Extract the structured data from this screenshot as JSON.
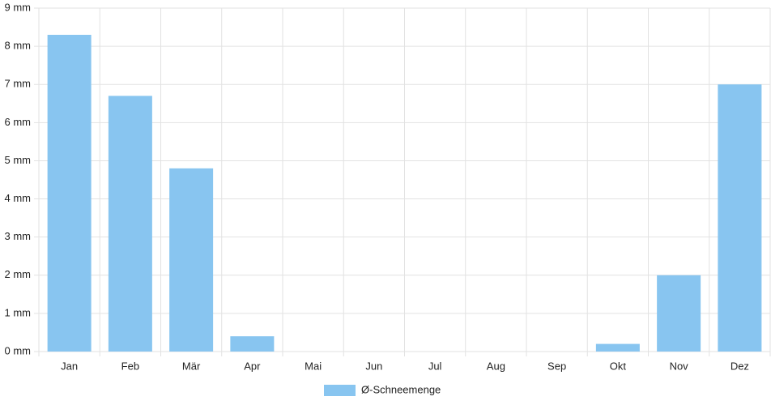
{
  "chart_data": {
    "type": "bar",
    "categories": [
      "Jan",
      "Feb",
      "Mär",
      "Apr",
      "Mai",
      "Jun",
      "Jul",
      "Aug",
      "Sep",
      "Okt",
      "Nov",
      "Dez"
    ],
    "series": [
      {
        "name": "Ø-Schneemenge",
        "color": "#88c5f0",
        "values": [
          8.3,
          6.7,
          4.8,
          0.4,
          0,
          0,
          0,
          0,
          0,
          0.2,
          2.0,
          7.0
        ]
      }
    ],
    "ylim": [
      0,
      9
    ],
    "yticks": [
      {
        "value": 0,
        "label": "0 mm"
      },
      {
        "value": 1,
        "label": "1 mm"
      },
      {
        "value": 2,
        "label": "2 mm"
      },
      {
        "value": 3,
        "label": "3 mm"
      },
      {
        "value": 4,
        "label": "4 mm"
      },
      {
        "value": 5,
        "label": "5 mm"
      },
      {
        "value": 6,
        "label": "6 mm"
      },
      {
        "value": 7,
        "label": "7 mm"
      },
      {
        "value": 8,
        "label": "8 mm"
      },
      {
        "value": 9,
        "label": "9 mm"
      }
    ],
    "grid": true,
    "legend": "bottom"
  }
}
